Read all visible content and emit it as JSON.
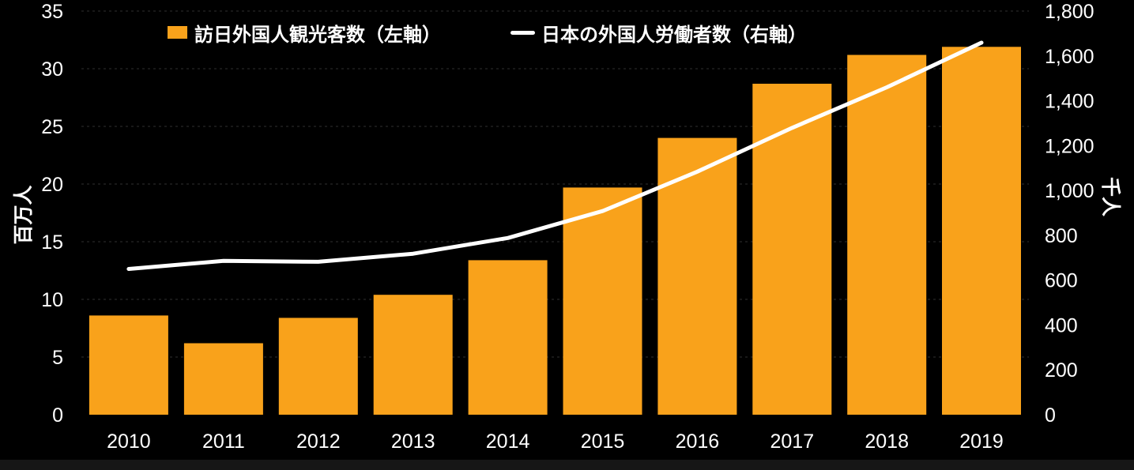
{
  "chart_data": {
    "type": "combo",
    "subtype": "bar+line",
    "categories": [
      "2010",
      "2011",
      "2012",
      "2013",
      "2014",
      "2015",
      "2016",
      "2017",
      "2018",
      "2019"
    ],
    "series": [
      {
        "name": "訪日外国人観光客数（左軸）",
        "type": "bar",
        "axis": "left",
        "color": "#F9A21B",
        "values": [
          8.6,
          6.2,
          8.4,
          10.4,
          13.4,
          19.7,
          24.0,
          28.7,
          31.2,
          31.9
        ]
      },
      {
        "name": "日本の外国人労働者数（右軸）",
        "type": "line",
        "axis": "right",
        "color": "#FFFFFF",
        "values": [
          650,
          686,
          682,
          718,
          788,
          908,
          1084,
          1279,
          1460,
          1659
        ]
      }
    ],
    "left_axis": {
      "label": "百万人",
      "min": 0,
      "max": 35,
      "step": 5,
      "ticks": [
        "0",
        "5",
        "10",
        "15",
        "20",
        "25",
        "30",
        "35"
      ]
    },
    "right_axis": {
      "label": "千人",
      "min": 0,
      "max": 1800,
      "step": 200,
      "ticks": [
        "0",
        "200",
        "400",
        "600",
        "800",
        "1,000",
        "1,200",
        "1,400",
        "1,600",
        "1,800"
      ]
    },
    "grid": "horizontal dashed",
    "gridline_color": "#303030",
    "legend_position": "top",
    "background_color": "#000000",
    "text_color": "#FFFFFF"
  }
}
